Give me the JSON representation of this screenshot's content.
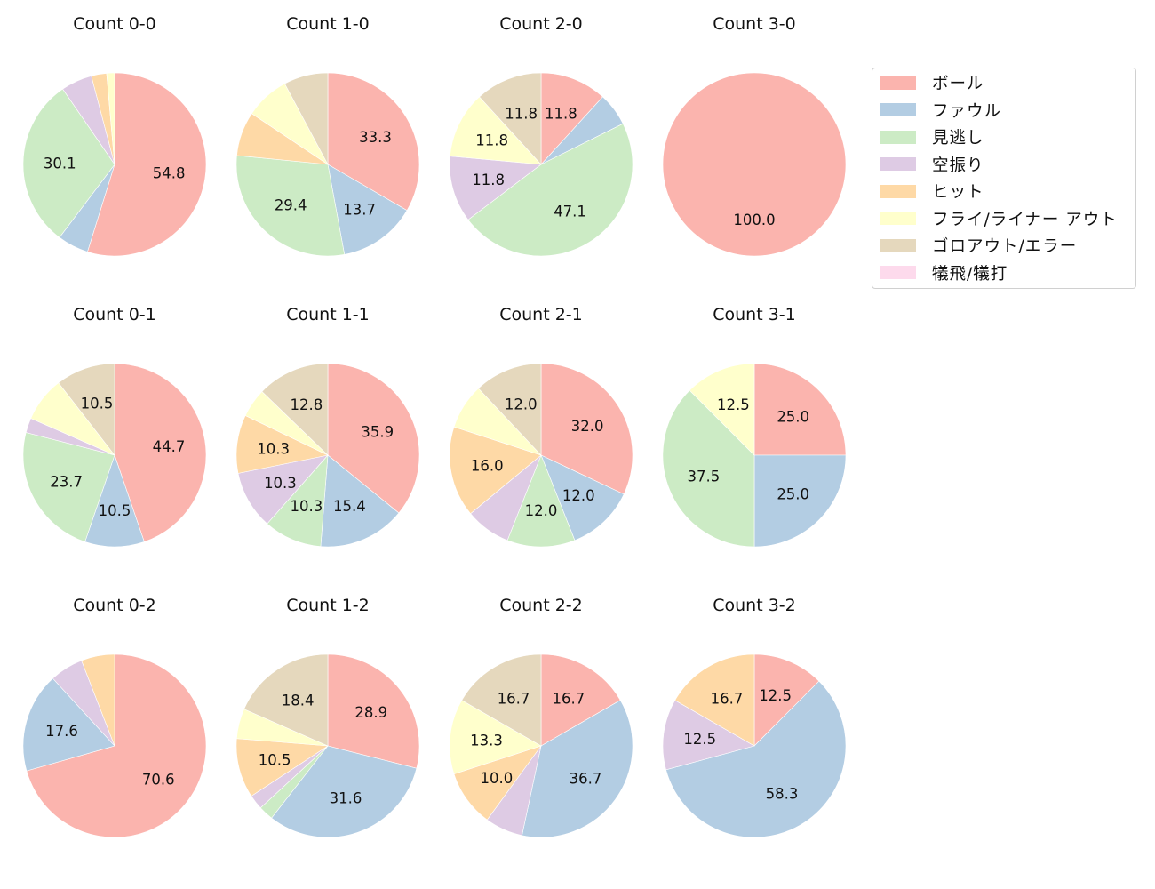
{
  "legend": {
    "items": [
      {
        "label": "ボール",
        "color": "#fbb4ae"
      },
      {
        "label": "ファウル",
        "color": "#b3cde3"
      },
      {
        "label": "見逃し",
        "color": "#ccebc5"
      },
      {
        "label": "空振り",
        "color": "#decbe4"
      },
      {
        "label": "ヒット",
        "color": "#fed9a6"
      },
      {
        "label": "フライ/ライナー アウト",
        "color": "#ffffcc"
      },
      {
        "label": "ゴロアウト/エラー",
        "color": "#e5d8bd"
      },
      {
        "label": "犠飛/犠打",
        "color": "#fddaec"
      }
    ]
  },
  "chart_data": [
    {
      "type": "pie",
      "title": "Count 0-0",
      "categories": [
        "ボール",
        "ファウル",
        "見逃し",
        "空振り",
        "ヒット",
        "フライ/ライナー アウト",
        "ゴロアウト/エラー",
        "犠飛/犠打"
      ],
      "values": [
        54.8,
        5.5,
        30.1,
        5.5,
        2.7,
        1.4,
        0,
        0
      ],
      "labels_shown": [
        "54.8",
        "",
        "30.1",
        "",
        "",
        "",
        "",
        ""
      ]
    },
    {
      "type": "pie",
      "title": "Count 1-0",
      "categories": [
        "ボール",
        "ファウル",
        "見逃し",
        "空振り",
        "ヒット",
        "フライ/ライナー アウト",
        "ゴロアウト/エラー",
        "犠飛/犠打"
      ],
      "values": [
        33.3,
        13.7,
        29.4,
        0,
        7.8,
        7.8,
        7.8,
        0
      ],
      "labels_shown": [
        "33.3",
        "13.7",
        "29.4",
        "",
        "",
        "",
        "",
        ""
      ]
    },
    {
      "type": "pie",
      "title": "Count 2-0",
      "categories": [
        "ボール",
        "ファウル",
        "見逃し",
        "空振り",
        "ヒット",
        "フライ/ライナー アウト",
        "ゴロアウト/エラー",
        "犠飛/犠打"
      ],
      "values": [
        11.8,
        5.9,
        47.1,
        11.8,
        0,
        11.8,
        11.8,
        0
      ],
      "labels_shown": [
        "11.8",
        "",
        "47.1",
        "11.8",
        "",
        "11.8",
        "11.8",
        ""
      ]
    },
    {
      "type": "pie",
      "title": "Count 3-0",
      "categories": [
        "ボール",
        "ファウル",
        "見逃し",
        "空振り",
        "ヒット",
        "フライ/ライナー アウト",
        "ゴロアウト/エラー",
        "犠飛/犠打"
      ],
      "values": [
        100.0,
        0,
        0,
        0,
        0,
        0,
        0,
        0
      ],
      "labels_shown": [
        "100.0",
        "",
        "",
        "",
        "",
        "",
        "",
        ""
      ]
    },
    {
      "type": "pie",
      "title": "Count 0-1",
      "categories": [
        "ボール",
        "ファウル",
        "見逃し",
        "空振り",
        "ヒット",
        "フライ/ライナー アウト",
        "ゴロアウト/エラー",
        "犠飛/犠打"
      ],
      "values": [
        44.7,
        10.5,
        23.7,
        2.6,
        0,
        7.9,
        10.5,
        0
      ],
      "labels_shown": [
        "44.7",
        "10.5",
        "23.7",
        "",
        "",
        "",
        "10.5",
        ""
      ]
    },
    {
      "type": "pie",
      "title": "Count 1-1",
      "categories": [
        "ボール",
        "ファウル",
        "見逃し",
        "空振り",
        "ヒット",
        "フライ/ライナー アウト",
        "ゴロアウト/エラー",
        "犠飛/犠打"
      ],
      "values": [
        35.9,
        15.4,
        10.3,
        10.3,
        10.3,
        5.1,
        12.8,
        0
      ],
      "labels_shown": [
        "35.9",
        "15.4",
        "10.3",
        "10.3",
        "10.3",
        "",
        "12.8",
        ""
      ]
    },
    {
      "type": "pie",
      "title": "Count 2-1",
      "categories": [
        "ボール",
        "ファウル",
        "見逃し",
        "空振り",
        "ヒット",
        "フライ/ライナー アウト",
        "ゴロアウト/エラー",
        "犠飛/犠打"
      ],
      "values": [
        32.0,
        12.0,
        12.0,
        8.0,
        16.0,
        8.0,
        12.0,
        0
      ],
      "labels_shown": [
        "32.0",
        "12.0",
        "12.0",
        "",
        "16.0",
        "",
        "12.0",
        ""
      ]
    },
    {
      "type": "pie",
      "title": "Count 3-1",
      "categories": [
        "ボール",
        "ファウル",
        "見逃し",
        "空振り",
        "ヒット",
        "フライ/ライナー アウト",
        "ゴロアウト/エラー",
        "犠飛/犠打"
      ],
      "values": [
        25.0,
        25.0,
        37.5,
        0,
        0,
        12.5,
        0,
        0
      ],
      "labels_shown": [
        "25.0",
        "25.0",
        "37.5",
        "",
        "",
        "12.5",
        "",
        ""
      ]
    },
    {
      "type": "pie",
      "title": "Count 0-2",
      "categories": [
        "ボール",
        "ファウル",
        "見逃し",
        "空振り",
        "ヒット",
        "フライ/ライナー アウト",
        "ゴロアウト/エラー",
        "犠飛/犠打"
      ],
      "values": [
        70.6,
        17.6,
        0,
        5.9,
        5.9,
        0,
        0,
        0
      ],
      "labels_shown": [
        "70.6",
        "17.6",
        "",
        "",
        "",
        "",
        "",
        ""
      ]
    },
    {
      "type": "pie",
      "title": "Count 1-2",
      "categories": [
        "ボール",
        "ファウル",
        "見逃し",
        "空振り",
        "ヒット",
        "フライ/ライナー アウト",
        "ゴロアウト/エラー",
        "犠飛/犠打"
      ],
      "values": [
        28.9,
        31.6,
        2.6,
        2.6,
        10.5,
        5.3,
        18.4,
        0
      ],
      "labels_shown": [
        "28.9",
        "31.6",
        "",
        "",
        "10.5",
        "",
        "18.4",
        ""
      ]
    },
    {
      "type": "pie",
      "title": "Count 2-2",
      "categories": [
        "ボール",
        "ファウル",
        "見逃し",
        "空振り",
        "ヒット",
        "フライ/ライナー アウト",
        "ゴロアウト/エラー",
        "犠飛/犠打"
      ],
      "values": [
        16.7,
        36.7,
        0,
        6.7,
        10.0,
        13.3,
        16.7,
        0
      ],
      "labels_shown": [
        "16.7",
        "36.7",
        "",
        "",
        "10.0",
        "13.3",
        "16.7",
        ""
      ]
    },
    {
      "type": "pie",
      "title": "Count 3-2",
      "categories": [
        "ボール",
        "ファウル",
        "見逃し",
        "空振り",
        "ヒット",
        "フライ/ライナー アウト",
        "ゴロアウト/エラー",
        "犠飛/犠打"
      ],
      "values": [
        12.5,
        58.3,
        0,
        12.5,
        16.7,
        0,
        0,
        0
      ],
      "labels_shown": [
        "12.5",
        "58.3",
        "",
        "12.5",
        "16.7",
        "",
        "",
        ""
      ]
    }
  ],
  "layout": {
    "start_angle_deg": 90,
    "direction": "clockwise",
    "label_threshold_pct": 10,
    "label_format": "%.1f"
  }
}
